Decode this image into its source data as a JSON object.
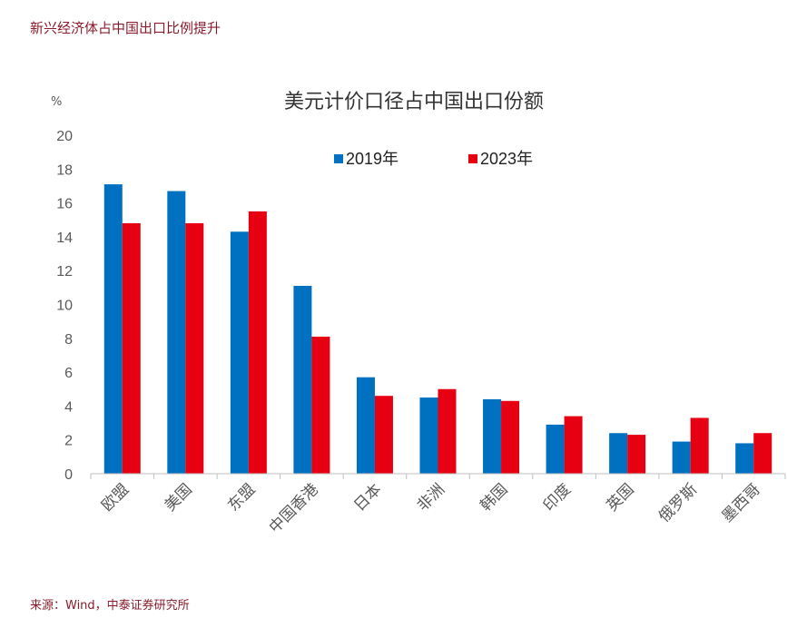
{
  "page": {
    "title": "新兴经济体占中国出口比例提升",
    "source": "来源：Wind，中泰证券研究所"
  },
  "colors": {
    "series_2019": "#0070c0",
    "series_2023": "#e60012",
    "axis": "#bfbfbf",
    "brand": "#8a1c2b"
  },
  "chart_data": {
    "type": "bar",
    "title": "美元计价口径占中国出口份额",
    "ylabel": "%",
    "xlabel": "",
    "ylim": [
      0,
      20
    ],
    "yticks": [
      0,
      2,
      4,
      6,
      8,
      10,
      12,
      14,
      16,
      18,
      20
    ],
    "grid": false,
    "legend_position": "top-center",
    "categories": [
      "欧盟",
      "美国",
      "东盟",
      "中国香港",
      "日本",
      "非洲",
      "韩国",
      "印度",
      "英国",
      "俄罗斯",
      "墨西哥"
    ],
    "series": [
      {
        "name": "2019年",
        "values": [
          17.1,
          16.7,
          14.3,
          11.1,
          5.7,
          4.5,
          4.4,
          2.9,
          2.4,
          1.9,
          1.8
        ]
      },
      {
        "name": "2023年",
        "values": [
          14.8,
          14.8,
          15.5,
          8.1,
          4.6,
          5.0,
          4.3,
          3.4,
          2.3,
          3.3,
          2.4
        ]
      }
    ]
  }
}
